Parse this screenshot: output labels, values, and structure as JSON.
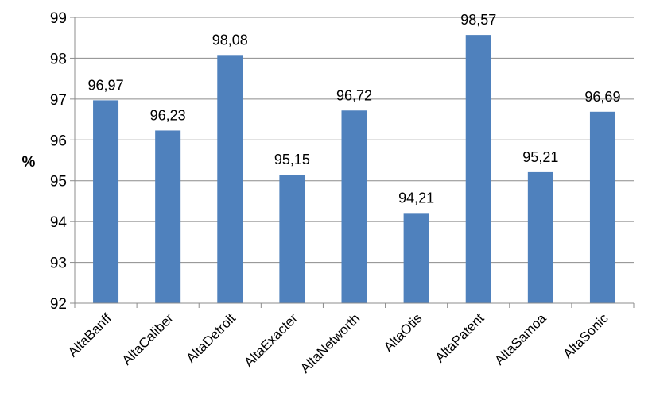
{
  "chart_data": {
    "type": "bar",
    "categories": [
      "AltaBanff",
      "AltaCaliber",
      "AltaDetroit",
      "AltaExacter",
      "AltaNetworth",
      "AltaOtis",
      "AltaPatent",
      "AltaSamoa",
      "AltaSonic"
    ],
    "values": [
      96.97,
      96.23,
      98.08,
      95.15,
      96.72,
      94.21,
      98.57,
      95.21,
      96.69
    ],
    "data_labels": [
      "96,97",
      "96,23",
      "98,08",
      "95,15",
      "96,72",
      "94,21",
      "98,57",
      "95,21",
      "96,69"
    ],
    "yticks": [
      "92",
      "93",
      "94",
      "95",
      "96",
      "97",
      "98",
      "99"
    ],
    "ylim": [
      92,
      99
    ],
    "ylabel": "%",
    "xlabel": "",
    "title": "",
    "grid": true,
    "legend": "none",
    "bar_color": "#4f81bd"
  }
}
